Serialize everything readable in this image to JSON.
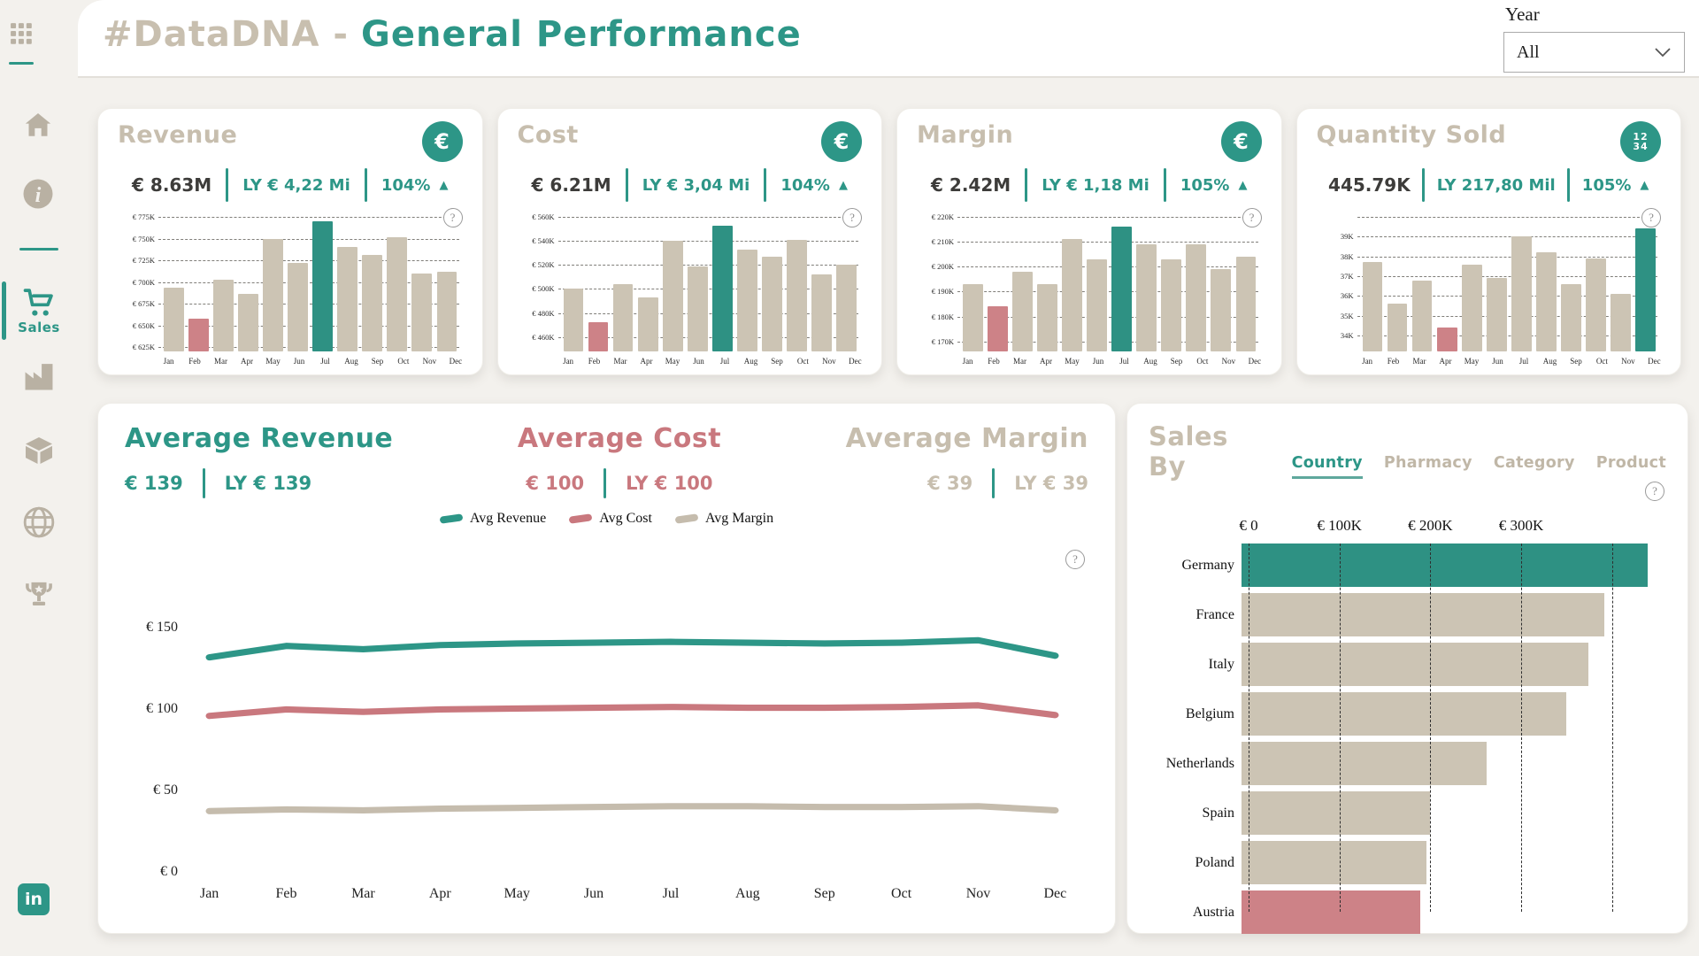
{
  "header": {
    "title_prefix": "#DataDNA -",
    "title_main": "General Performance",
    "year_label": "Year",
    "year_value": "All"
  },
  "sidebar": {
    "active_label": "Sales",
    "linkedin_label": "in"
  },
  "accent_colors": {
    "teal": "#2d9687",
    "pink": "#cd8287",
    "beige": "#ccc4b4",
    "dark": "#3d3c3a"
  },
  "kpi_cards": [
    {
      "title": "Revenue",
      "icon": "euro",
      "value": "€ 8.63M",
      "ly": "LY € 4,22 Mi",
      "pct": "104%",
      "chart_index": 0
    },
    {
      "title": "Cost",
      "icon": "euro",
      "value": "€ 6.21M",
      "ly": "LY € 3,04 Mi",
      "pct": "104%",
      "chart_index": 1
    },
    {
      "title": "Margin",
      "icon": "euro",
      "value": "€ 2.42M",
      "ly": "LY € 1,18 Mi",
      "pct": "105%",
      "chart_index": 2
    },
    {
      "title": "Quantity Sold",
      "icon": "numbers",
      "value": "445.79K",
      "ly": "LY 217,80 Mil",
      "pct": "105%",
      "chart_index": 3
    }
  ],
  "avg_section": {
    "groups": [
      {
        "title": "Average Revenue",
        "value": "€ 139",
        "ly": "LY € 139",
        "color": "#2d9687"
      },
      {
        "title": "Average Cost",
        "value": "€ 100",
        "ly": "LY € 100",
        "color": "#c9787e"
      },
      {
        "title": "Average Margin",
        "value": "€ 39",
        "ly": "LY € 39",
        "color": "#c7beae"
      }
    ],
    "legend": [
      {
        "label": "Avg Revenue",
        "color": "#2d9687"
      },
      {
        "label": "Avg Cost",
        "color": "#c9787e"
      },
      {
        "label": "Avg Margin",
        "color": "#c5bcad"
      }
    ]
  },
  "sales_by": {
    "title": "Sales By",
    "tabs": [
      {
        "label": "Country",
        "active": true
      },
      {
        "label": "Pharmacy",
        "active": false
      },
      {
        "label": "Category",
        "active": false
      },
      {
        "label": "Product",
        "active": false
      }
    ],
    "chart_index": 5
  },
  "chart_data": [
    {
      "id": "revenue_by_month",
      "type": "bar",
      "title": "Revenue by Month",
      "ymax": 775,
      "step": 25,
      "base": 620,
      "ticks": [
        "€ 775K",
        "€ 750K",
        "€ 725K",
        "€ 700K",
        "€ 675K",
        "€ 650K",
        "€ 625K"
      ],
      "categories": [
        "Jan",
        "Feb",
        "Mar",
        "Apr",
        "May",
        "Jun",
        "Jul",
        "Aug",
        "Sep",
        "Oct",
        "Nov",
        "Dec"
      ],
      "values": [
        693,
        658,
        703,
        686,
        750,
        722,
        770,
        740,
        731,
        752,
        710,
        712
      ],
      "high_index": 6,
      "low_index": 1
    },
    {
      "id": "cost_by_month",
      "type": "bar",
      "title": "Cost by Month",
      "ymax": 560,
      "step": 20,
      "base": 448,
      "ticks": [
        "€ 560K",
        "€ 540K",
        "€ 520K",
        "€ 500K",
        "€ 480K",
        "€ 460K"
      ],
      "categories": [
        "Jan",
        "Feb",
        "Mar",
        "Apr",
        "May",
        "Jun",
        "Jul",
        "Aug",
        "Sep",
        "Oct",
        "Nov",
        "Dec"
      ],
      "values": [
        500,
        472,
        504,
        493,
        540,
        519,
        553,
        533,
        527,
        541,
        512,
        520
      ],
      "high_index": 6,
      "low_index": 1
    },
    {
      "id": "margin_by_month",
      "type": "bar",
      "title": "Margin by Month",
      "ymax": 220,
      "step": 10,
      "base": 166,
      "ticks": [
        "€ 220K",
        "€ 210K",
        "€ 200K",
        "€ 190K",
        "€ 180K",
        "€ 170K"
      ],
      "categories": [
        "Jan",
        "Feb",
        "Mar",
        "Apr",
        "May",
        "Jun",
        "Jul",
        "Aug",
        "Sep",
        "Oct",
        "Nov",
        "Dec"
      ],
      "values": [
        193,
        184,
        198,
        193,
        211,
        203,
        216,
        209,
        203,
        209,
        199,
        204
      ],
      "high_index": 6,
      "low_index": 1
    },
    {
      "id": "quantity_by_month",
      "type": "bar",
      "title": "Quantity Sold by Month",
      "ymax": 40,
      "step": 1,
      "base": 33.2,
      "ticks": [
        "",
        "39K",
        "38K",
        "37K",
        "36K",
        "35K",
        "34K"
      ],
      "categories": [
        "Jan",
        "Feb",
        "Mar",
        "Apr",
        "May",
        "Jun",
        "Jul",
        "Aug",
        "Sep",
        "Oct",
        "Nov",
        "Dec"
      ],
      "values": [
        37.7,
        35.6,
        36.8,
        34.4,
        37.6,
        36.9,
        39.0,
        38.2,
        36.6,
        37.9,
        36.1,
        39.4
      ],
      "high_index": 11,
      "low_index": 3
    },
    {
      "id": "averages_line",
      "type": "line",
      "title": "Average Revenue / Cost / Margin by Month",
      "ymax": 165,
      "yticks": [
        {
          "label": "€ 150",
          "value": 150
        },
        {
          "label": "€ 100",
          "value": 100
        },
        {
          "label": "€ 50",
          "value": 50
        },
        {
          "label": "€ 0",
          "value": 0
        }
      ],
      "categories": [
        "Jan",
        "Feb",
        "Mar",
        "Apr",
        "May",
        "Jun",
        "Jul",
        "Aug",
        "Sep",
        "Oct",
        "Nov",
        "Dec"
      ],
      "series": [
        {
          "name": "Avg Revenue",
          "color": "#2d9687",
          "values": [
            132,
            139,
            137,
            139.5,
            140.5,
            141,
            141.5,
            141,
            140.5,
            141,
            142.5,
            133
          ]
        },
        {
          "name": "Avg Cost",
          "color": "#c9787e",
          "values": [
            96,
            100,
            98.5,
            100,
            100.5,
            101,
            101.5,
            101,
            101,
            101.5,
            102.5,
            96.5
          ]
        },
        {
          "name": "Avg Margin",
          "color": "#c5bcad",
          "values": [
            37.5,
            38.5,
            38,
            39,
            39.5,
            40,
            40.5,
            40.5,
            40,
            40,
            40.5,
            38
          ]
        }
      ]
    },
    {
      "id": "sales_by_country",
      "type": "bar-horizontal",
      "title": "Sales By Country",
      "axis_max": 450,
      "grid_values": [
        0,
        100,
        200,
        300,
        400
      ],
      "ticks": [
        {
          "label": "€ 0",
          "value": 0
        },
        {
          "label": "€ 100K",
          "value": 100
        },
        {
          "label": "€ 200K",
          "value": 200
        },
        {
          "label": "€ 300K",
          "value": 300
        }
      ],
      "bars": [
        {
          "label": "Germany",
          "value": 439,
          "role": "high"
        },
        {
          "label": "France",
          "value": 393,
          "role": "mid"
        },
        {
          "label": "Italy",
          "value": 375,
          "role": "mid"
        },
        {
          "label": "Belgium",
          "value": 351,
          "role": "mid"
        },
        {
          "label": "Netherlands",
          "value": 265,
          "role": "mid"
        },
        {
          "label": "Spain",
          "value": 204,
          "role": "mid"
        },
        {
          "label": "Poland",
          "value": 200,
          "role": "mid"
        },
        {
          "label": "Austria",
          "value": 193,
          "role": "low"
        }
      ]
    }
  ]
}
